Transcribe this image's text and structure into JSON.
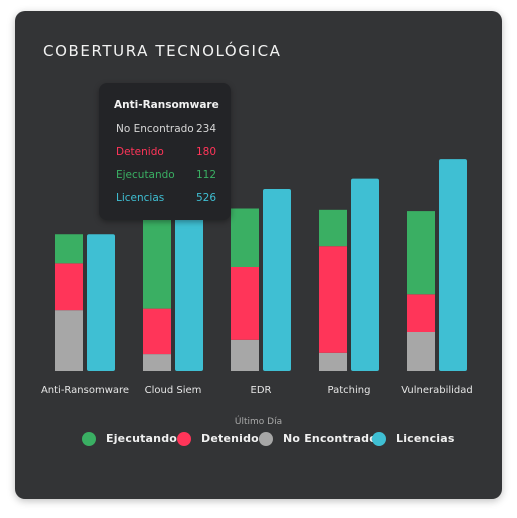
{
  "chart_data": {
    "type": "bar",
    "title": "COBERTURA TECNOLÓGICA",
    "categories": [
      "Anti-Ransomware",
      "Cloud Siem",
      "EDR",
      "Patching",
      "Vulnerabilidad"
    ],
    "series": [
      {
        "name": "No Encontrado",
        "stack": "estado",
        "color": "#a7a7a7",
        "values": [
          234,
          65,
          120,
          70,
          150
        ]
      },
      {
        "name": "Detenido",
        "stack": "estado",
        "color": "#ff3559",
        "values": [
          180,
          175,
          280,
          410,
          145
        ]
      },
      {
        "name": "Ejecutando",
        "stack": "estado",
        "color": "#3aaf63",
        "values": [
          112,
          520,
          225,
          140,
          320
        ]
      },
      {
        "name": "Licencias",
        "stack": "licencias",
        "color": "#3fbfd3",
        "values": [
          526,
          660,
          700,
          740,
          815
        ]
      }
    ],
    "legend_caption": "Último Día",
    "legend_order": [
      "Ejecutando",
      "Detenido",
      "No Encontrado",
      "Licencias"
    ],
    "legend_position": "bottom",
    "grid": false
  },
  "tooltip": {
    "title": "Anti-Ransomware",
    "rows": [
      {
        "label": "No Encontrado",
        "value": "234",
        "color": "#d6d6d6"
      },
      {
        "label": "Detenido",
        "value": "180",
        "color": "#ff3559"
      },
      {
        "label": "Ejecutando",
        "value": "112",
        "color": "#3aaf63"
      },
      {
        "label": "Licencias",
        "value": "526",
        "color": "#3fbfd3"
      }
    ]
  }
}
